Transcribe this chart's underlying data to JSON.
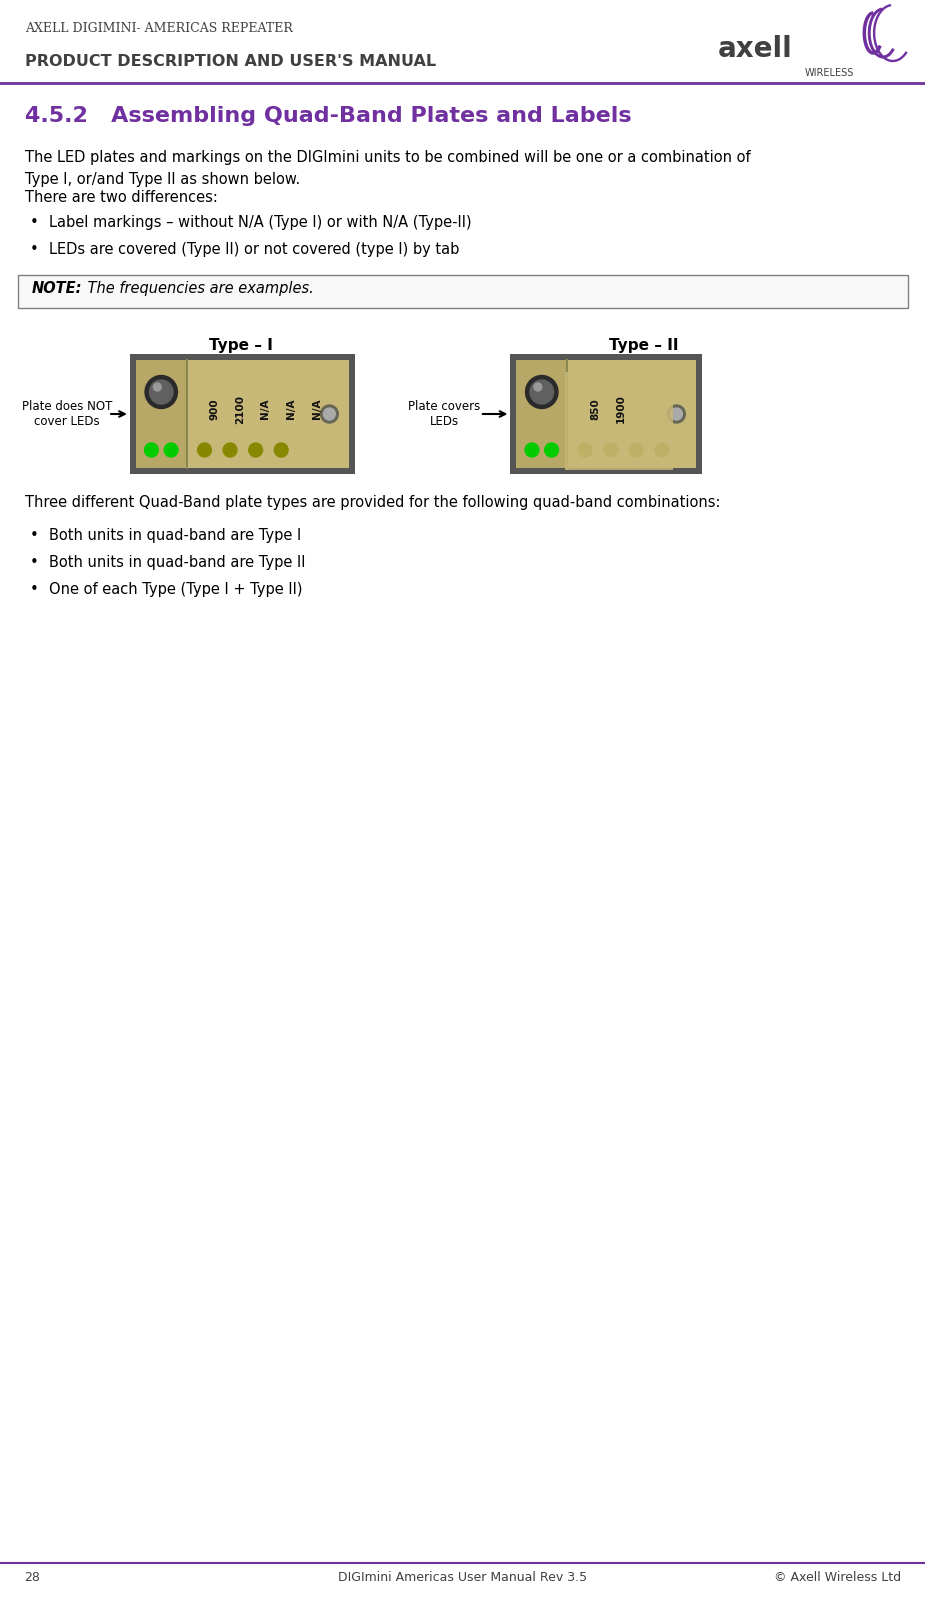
{
  "page_width": 9.41,
  "page_height": 16.01,
  "bg_color": "#ffffff",
  "header_title": "AXELL DIGIMINI- AMERICAS REPEATER",
  "header_subtitle": "PRODUCT DESCRIPTION AND USER'S MANUAL",
  "header_title_color": "#404040",
  "header_subtitle_color": "#404040",
  "header_line_color": "#7030a0",
  "section_title": "4.5.2   Assembling Quad-Band Plates and Labels",
  "section_title_color": "#7030a0",
  "body_color": "#000000",
  "footer_line_color": "#7030a0",
  "type1_label": "Type – I",
  "type2_label": "Type – II",
  "led_green": "#00cc00",
  "type1_freqs": [
    "900",
    "2100",
    "N/A",
    "N/A",
    "N/A"
  ],
  "type2_freqs": [
    "850",
    "1900"
  ],
  "note_text_bold": "NOTE:",
  "note_text_italic": " The frequencies are examples.",
  "para1": "The LED plates and markings on the DIGImini units to be combined will be one or a combination of\nType I, or/and Type II as shown below.",
  "para2": "There are two differences:",
  "bullet1": "Label markings – without N/A (Type I) or with N/A (Type-II)",
  "bullet2": "LEDs are covered (Type II) or not covered (type I) by tab",
  "para3": "Three different Quad-Band plate types are provided for the following quad-band combinations:",
  "bullet3": "Both units in quad-band are Type I",
  "bullet4": "Both units in quad-band are Type II",
  "bullet5": "One of each Type (Type I + Type II)",
  "plate_does_not_cover": "Plate does NOT\ncover LEDs",
  "plate_covers": "Plate covers\nLEDs",
  "footer_page": "28",
  "footer_center": "DIGImini Americas User Manual Rev 3.5",
  "footer_right": "© Axell Wireless Ltd"
}
